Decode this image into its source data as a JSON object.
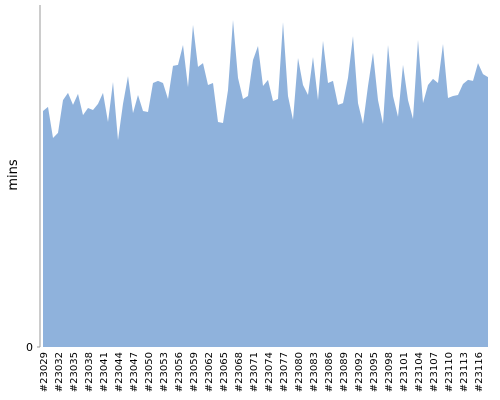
{
  "chart_data": {
    "type": "area",
    "y_label": "mins",
    "color": "#8fb2dc",
    "categories": [
      "#23029",
      null,
      null,
      "#23032",
      null,
      null,
      "#23035",
      null,
      null,
      "#23038",
      null,
      null,
      "#23041",
      null,
      null,
      "#23044",
      null,
      null,
      "#23047",
      null,
      null,
      "#23050",
      null,
      null,
      "#23053",
      null,
      null,
      "#23056",
      null,
      null,
      "#23059",
      null,
      null,
      "#23062",
      null,
      null,
      "#23065",
      null,
      null,
      "#23068",
      null,
      null,
      "#23071",
      null,
      null,
      "#23074",
      null,
      null,
      "#23077",
      null,
      null,
      "#23080",
      null,
      null,
      "#23083",
      null,
      null,
      "#23086",
      null,
      null,
      "#23089",
      null,
      null,
      "#23092",
      null,
      null,
      "#23095",
      null,
      null,
      "#23098",
      null,
      null,
      "#23101",
      null,
      null,
      "#23104",
      null,
      null,
      "#23107",
      null,
      null,
      "#23110",
      null,
      null,
      "#23113",
      null,
      null,
      "#23116",
      null,
      null
    ],
    "values": [
      69.0,
      70.2,
      61.1,
      62.6,
      72.2,
      74.3,
      70.8,
      74.0,
      67.8,
      69.9,
      69.3,
      71.1,
      74.3,
      65.8,
      77.5,
      60.5,
      71.1,
      79.2,
      68.4,
      73.7,
      69.0,
      68.7,
      77.2,
      77.8,
      77.2,
      72.5,
      82.2,
      82.5,
      88.3,
      76.0,
      94.2,
      81.9,
      83.0,
      76.6,
      77.2,
      65.8,
      65.5,
      75.1,
      95.6,
      78.7,
      72.5,
      73.4,
      83.9,
      88.0,
      76.3,
      78.1,
      71.9,
      72.5,
      95.0,
      73.4,
      66.4,
      84.5,
      76.6,
      73.7,
      84.8,
      72.2,
      89.5,
      77.2,
      77.8,
      70.8,
      71.3,
      78.7,
      90.9,
      71.3,
      65.2,
      76.3,
      86.0,
      72.2,
      65.2,
      88.3,
      73.4,
      67.3,
      82.5,
      72.2,
      66.7,
      89.8,
      71.3,
      76.6,
      78.4,
      77.2,
      88.6,
      72.8,
      73.4,
      73.7,
      76.9,
      78.1,
      77.8,
      83.0,
      79.8,
      78.9
    ],
    "ylim": [
      0,
      100
    ],
    "yticks": [
      0
    ]
  }
}
